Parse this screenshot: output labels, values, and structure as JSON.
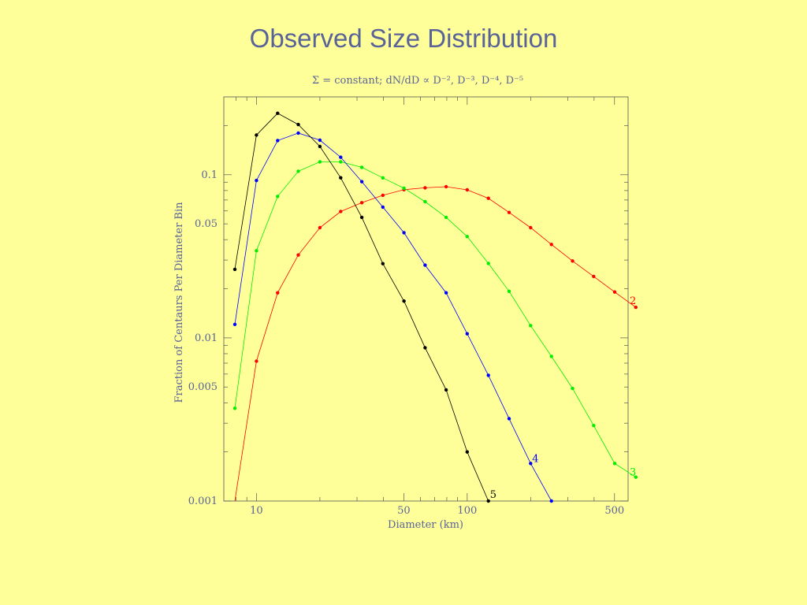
{
  "slide": {
    "title": "Observed Size Distribution"
  },
  "chart_data": {
    "type": "line",
    "subtitle": "Σ  = constant; dN/dD ∝  D⁻², D⁻³, D⁻⁴, D⁻⁵",
    "xlabel": "Diameter (km)",
    "ylabel": "Fraction of Centaurs Per Diameter Bin",
    "xscale": "log",
    "yscale": "log",
    "xlim": [
      7,
      580
    ],
    "ylim": [
      0.001,
      0.3
    ],
    "xticks": [
      10,
      50,
      100,
      500
    ],
    "xtick_labels": [
      "10",
      "50",
      "100",
      "500"
    ],
    "yticks": [
      0.001,
      0.005,
      0.01,
      0.05,
      0.1
    ],
    "ytick_labels": [
      "0.001",
      "0.005",
      "0.01",
      "0.05",
      "0.1"
    ],
    "grid": false,
    "series": [
      {
        "name": "2",
        "color": "#FF0000",
        "points": [
          [
            7.9,
            0.001
          ],
          [
            10.0,
            0.0072
          ],
          [
            12.6,
            0.0189
          ],
          [
            15.8,
            0.0322
          ],
          [
            20.0,
            0.0474
          ],
          [
            25.1,
            0.0595
          ],
          [
            31.6,
            0.0674
          ],
          [
            39.8,
            0.0748
          ],
          [
            50.1,
            0.081
          ],
          [
            63.1,
            0.0832
          ],
          [
            79.4,
            0.0845
          ],
          [
            100,
            0.0808
          ],
          [
            126,
            0.0717
          ],
          [
            158,
            0.0587
          ],
          [
            200,
            0.0474
          ],
          [
            251,
            0.0374
          ],
          [
            316,
            0.0296
          ],
          [
            398,
            0.0238
          ],
          [
            501,
            0.0191
          ],
          [
            631,
            0.0154
          ]
        ]
      },
      {
        "name": "3",
        "color": "#00EE00",
        "points": [
          [
            7.9,
            0.0037
          ],
          [
            10.0,
            0.0342
          ],
          [
            12.6,
            0.0737
          ],
          [
            15.8,
            0.105
          ],
          [
            20.0,
            0.12
          ],
          [
            25.1,
            0.12
          ],
          [
            31.6,
            0.111
          ],
          [
            39.8,
            0.0957
          ],
          [
            50.1,
            0.0827
          ],
          [
            63.1,
            0.0684
          ],
          [
            79.4,
            0.0548
          ],
          [
            100,
            0.0418
          ],
          [
            126,
            0.0286
          ],
          [
            158,
            0.0193
          ],
          [
            200,
            0.0119
          ],
          [
            251,
            0.0077
          ],
          [
            316,
            0.0049
          ],
          [
            398,
            0.0029
          ],
          [
            501,
            0.0017
          ],
          [
            631,
            0.0014
          ]
        ]
      },
      {
        "name": "4",
        "color": "#0000FF",
        "points": [
          [
            7.9,
            0.0121
          ],
          [
            10.0,
            0.0922
          ],
          [
            12.6,
            0.162
          ],
          [
            15.8,
            0.18
          ],
          [
            20.0,
            0.163
          ],
          [
            25.1,
            0.128
          ],
          [
            31.6,
            0.0907
          ],
          [
            39.8,
            0.0633
          ],
          [
            50.1,
            0.0441
          ],
          [
            63.1,
            0.0279
          ],
          [
            79.4,
            0.0189
          ],
          [
            100,
            0.0106
          ],
          [
            126,
            0.0059
          ],
          [
            158,
            0.0032
          ],
          [
            200,
            0.0017
          ],
          [
            251,
            0.001
          ]
        ]
      },
      {
        "name": "5",
        "color": "#000000",
        "points": [
          [
            7.9,
            0.0263
          ],
          [
            10.0,
            0.175
          ],
          [
            12.6,
            0.238
          ],
          [
            15.8,
            0.203
          ],
          [
            20.0,
            0.149
          ],
          [
            25.1,
            0.0958
          ],
          [
            31.6,
            0.0548
          ],
          [
            39.8,
            0.0285
          ],
          [
            50.1,
            0.0168
          ],
          [
            63.1,
            0.0087
          ],
          [
            79.4,
            0.0048
          ],
          [
            100,
            0.002
          ],
          [
            126,
            0.001
          ]
        ]
      }
    ],
    "end_labels": [
      {
        "text": "2",
        "color": "#FF0000",
        "x": 631,
        "y": 0.0158
      },
      {
        "text": "3",
        "color": "#00EE00",
        "x": 631,
        "y": 0.0014
      },
      {
        "text": "4",
        "color": "#0000FF",
        "x": 200,
        "y": 0.0017
      },
      {
        "text": "5",
        "color": "#000000",
        "x": 126,
        "y": 0.00102
      }
    ]
  }
}
